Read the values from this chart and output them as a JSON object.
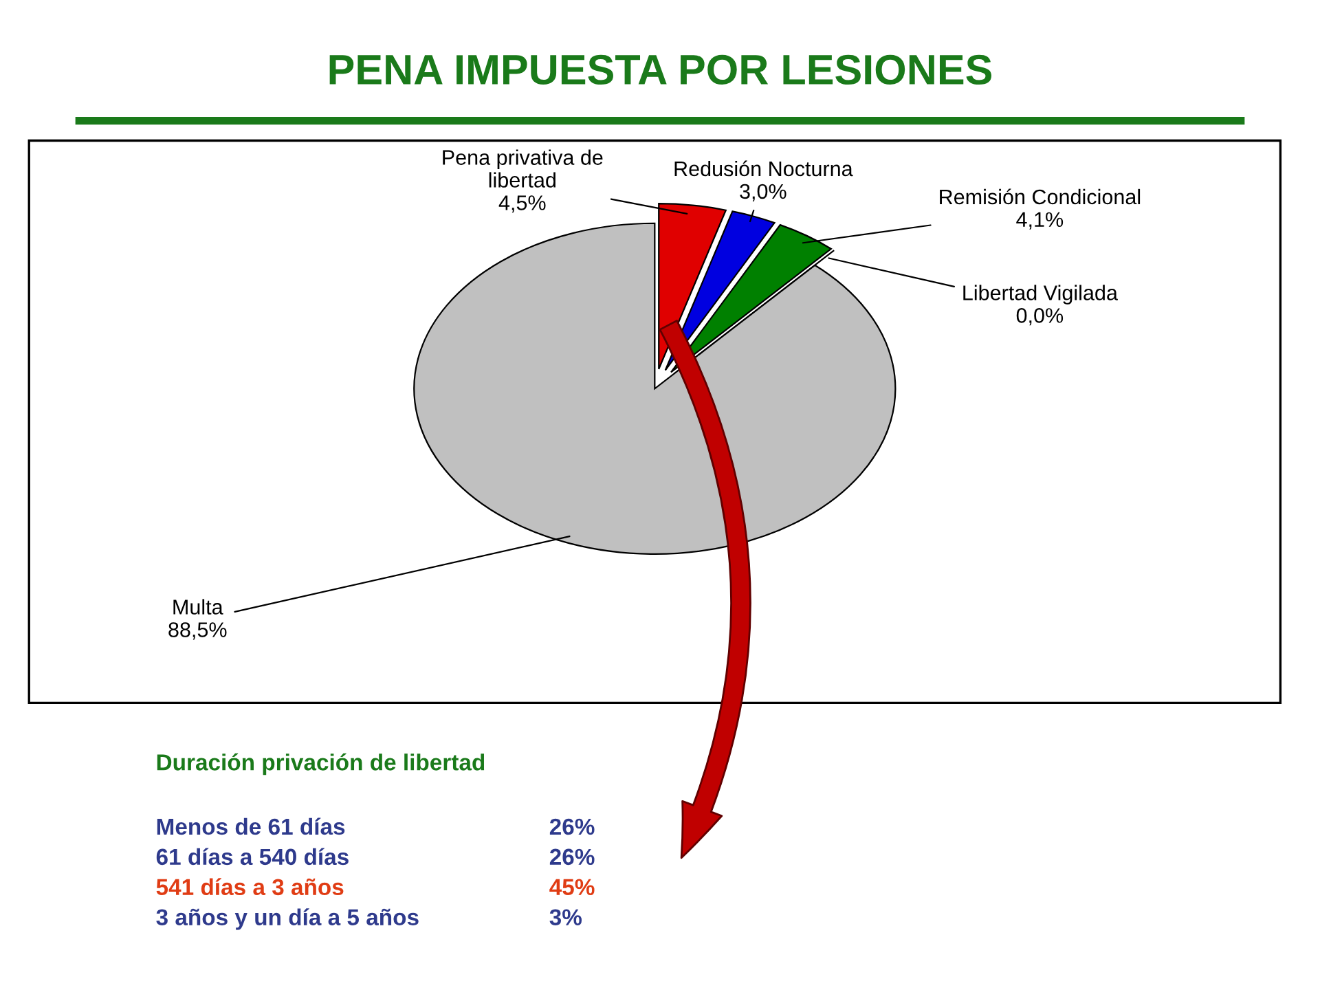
{
  "chart_data": {
    "type": "pie",
    "title": "PENA IMPUESTA POR LESIONES",
    "categories": [
      "Pena privativa de\nlibertad",
      "Redusión Nocturna",
      "Remisión Condicional",
      "Libertad Vigilada",
      "Multa"
    ],
    "values": [
      4.5,
      3.0,
      4.1,
      0.0,
      88.5
    ],
    "value_labels": [
      "4,5%",
      "3,0%",
      "4,1%",
      "0,0%",
      "88,5%"
    ],
    "colors": [
      "#e00000",
      "#0000e0",
      "#008000",
      "#808000",
      "#c0c0c0"
    ],
    "legend": false,
    "annotations": [
      "Duración privación de libertad",
      "Menos de 61 días",
      "26%",
      "61 días a 540 días",
      "26%",
      "541 días a 3 años",
      "45%",
      "3 años y un día a 5 años",
      "3%"
    ]
  }
}
